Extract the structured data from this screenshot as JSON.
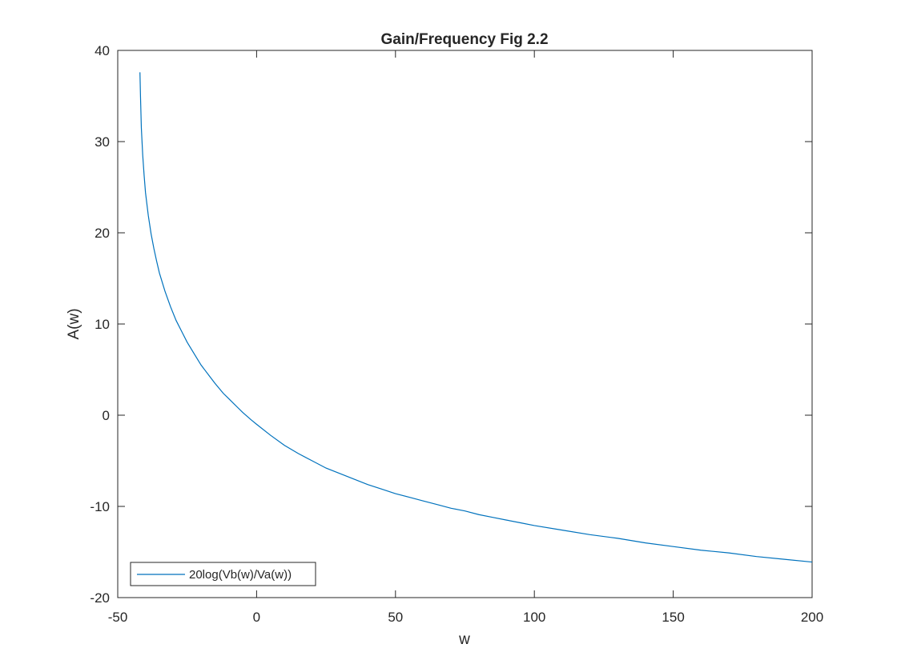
{
  "chart_data": {
    "type": "line",
    "title": "Gain/Frequency Fig 2.2",
    "xlabel": "w",
    "ylabel": "A(w)",
    "xlim": [
      -50,
      200
    ],
    "ylim": [
      -20,
      40
    ],
    "xticks": [
      -50,
      0,
      50,
      100,
      150,
      200
    ],
    "yticks": [
      -20,
      -10,
      0,
      10,
      20,
      30,
      40
    ],
    "grid": false,
    "legend_position": "bottom-left",
    "series": [
      {
        "name": "20log(Vb(w)/Va(w))",
        "color": "#0072BD",
        "x": [
          -42.0,
          -41.8,
          -41.5,
          -41.0,
          -40.5,
          -40.0,
          -39.0,
          -38.0,
          -37.0,
          -36.0,
          -35.0,
          -33.0,
          -31.0,
          -29.0,
          -27.0,
          -25.0,
          -22.0,
          -20.0,
          -17.0,
          -15.0,
          -12.0,
          -10.0,
          -7.0,
          -5.0,
          -2.0,
          0.0,
          5.0,
          10.0,
          15.0,
          20.0,
          25.0,
          30.0,
          35.0,
          40.0,
          45.0,
          50.0,
          55.0,
          60.0,
          65.0,
          70.0,
          75.0,
          80.0,
          85.0,
          90.0,
          95.0,
          100.0,
          110.0,
          120.0,
          130.0,
          140.0,
          150.0,
          160.0,
          170.0,
          180.0,
          190.0,
          200.0
        ],
        "y": [
          37.6,
          34.9,
          31.5,
          28.5,
          26.3,
          24.4,
          21.9,
          19.9,
          18.3,
          16.9,
          15.6,
          13.6,
          11.9,
          10.4,
          9.2,
          8.0,
          6.5,
          5.5,
          4.3,
          3.5,
          2.4,
          1.8,
          0.9,
          0.3,
          -0.5,
          -1.0,
          -2.2,
          -3.3,
          -4.2,
          -5.0,
          -5.8,
          -6.4,
          -7.0,
          -7.6,
          -8.1,
          -8.6,
          -9.0,
          -9.4,
          -9.8,
          -10.2,
          -10.5,
          -10.9,
          -11.2,
          -11.5,
          -11.8,
          -12.1,
          -12.6,
          -13.1,
          -13.5,
          -14.0,
          -14.4,
          -14.8,
          -15.1,
          -15.5,
          -15.8,
          -16.1
        ]
      }
    ]
  }
}
